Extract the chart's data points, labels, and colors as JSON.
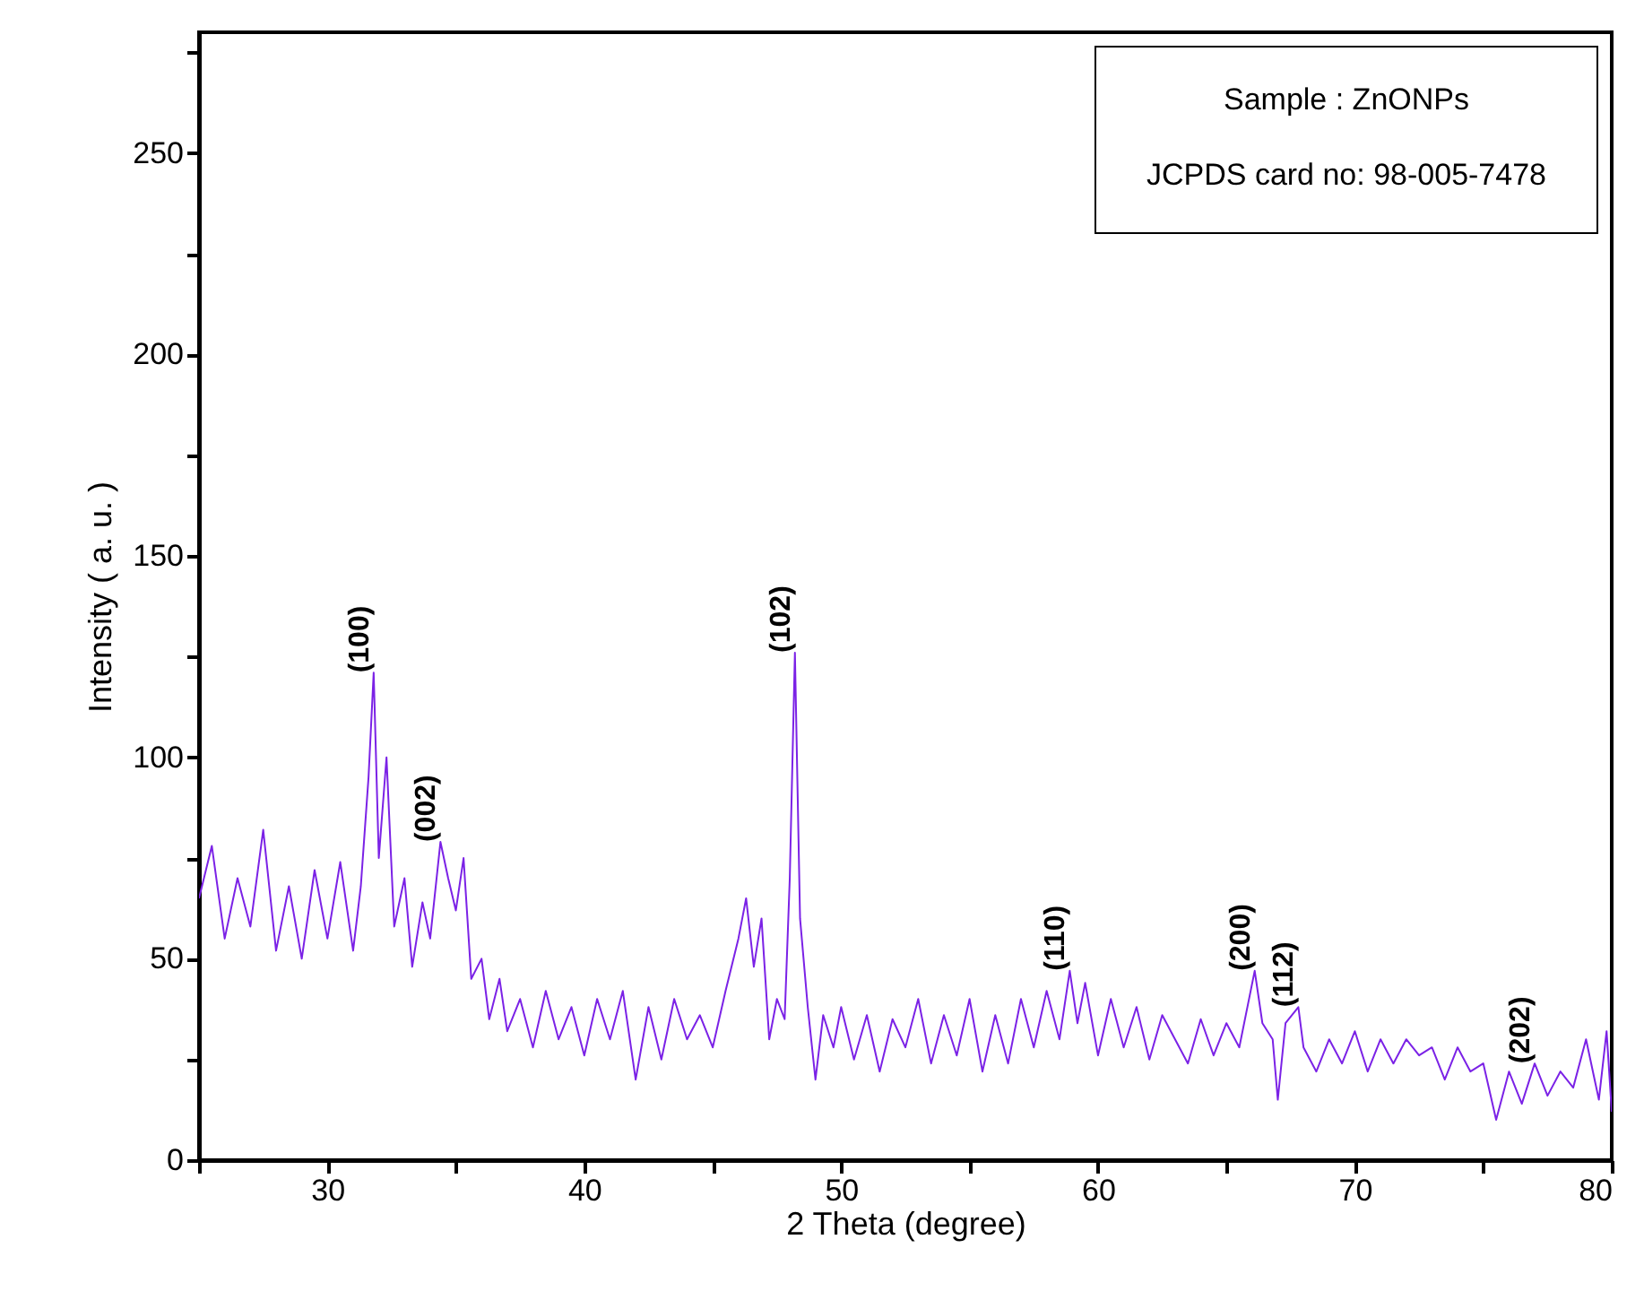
{
  "chart_data": {
    "type": "line",
    "xlabel": "2 Theta (degree)",
    "ylabel": "Intensity ( a. u. )",
    "xlim": [
      25,
      80
    ],
    "ylim": [
      0,
      280
    ],
    "xticks": [
      {
        "value": 25,
        "label": null
      },
      30,
      {
        "value": 35,
        "label": null
      },
      40,
      {
        "value": 45,
        "label": null
      },
      50,
      {
        "value": 55,
        "label": null
      },
      60,
      {
        "value": 65,
        "label": null
      },
      70,
      {
        "value": 75,
        "label": null
      },
      80
    ],
    "yticks": [
      0,
      {
        "value": 25,
        "label": null
      },
      50,
      {
        "value": 75,
        "label": null
      },
      100,
      {
        "value": 125,
        "label": null
      },
      150,
      {
        "value": 175,
        "label": null
      },
      200,
      {
        "value": 225,
        "label": null
      },
      250,
      {
        "value": 275,
        "label": null
      }
    ],
    "grid": false,
    "marker": "none",
    "line_style": "solid",
    "x": [
      25.0,
      25.5,
      26.0,
      26.5,
      27.0,
      27.5,
      28.0,
      28.5,
      29.0,
      29.5,
      30.0,
      30.5,
      31.0,
      31.3,
      31.6,
      31.8,
      32.0,
      32.3,
      32.6,
      33.0,
      33.3,
      33.7,
      34.0,
      34.4,
      34.7,
      35.0,
      35.3,
      35.6,
      36.0,
      36.3,
      36.7,
      37.0,
      37.5,
      38.0,
      38.5,
      39.0,
      39.5,
      40.0,
      40.5,
      41.0,
      41.5,
      42.0,
      42.5,
      43.0,
      43.5,
      44.0,
      44.5,
      45.0,
      45.5,
      46.0,
      46.3,
      46.6,
      46.9,
      47.2,
      47.5,
      47.8,
      48.0,
      48.2,
      48.4,
      48.7,
      49.0,
      49.3,
      49.7,
      50.0,
      50.5,
      51.0,
      51.5,
      52.0,
      52.5,
      53.0,
      53.5,
      54.0,
      54.5,
      55.0,
      55.5,
      56.0,
      56.5,
      57.0,
      57.5,
      58.0,
      58.5,
      58.9,
      59.2,
      59.5,
      60.0,
      60.5,
      61.0,
      61.5,
      62.0,
      62.5,
      63.0,
      63.5,
      64.0,
      64.5,
      65.0,
      65.5,
      66.1,
      66.4,
      66.8,
      67.0,
      67.3,
      67.8,
      68.0,
      68.5,
      69.0,
      69.5,
      70.0,
      70.5,
      71.0,
      71.5,
      72.0,
      72.5,
      73.0,
      73.5,
      74.0,
      74.5,
      75.0,
      75.5,
      76.0,
      76.5,
      77.0,
      77.5,
      78.0,
      78.5,
      79.0,
      79.5,
      79.8,
      80.0
    ],
    "series": [
      {
        "color": "#7b22e6",
        "values": [
          65,
          78,
          55,
          70,
          58,
          82,
          52,
          68,
          50,
          72,
          55,
          74,
          52,
          68,
          95,
          121,
          75,
          100,
          58,
          70,
          48,
          64,
          55,
          79,
          70,
          62,
          75,
          45,
          50,
          35,
          45,
          32,
          40,
          28,
          42,
          30,
          38,
          26,
          40,
          30,
          42,
          20,
          38,
          25,
          40,
          30,
          36,
          28,
          42,
          55,
          65,
          48,
          60,
          30,
          40,
          35,
          70,
          126,
          60,
          38,
          20,
          36,
          28,
          38,
          25,
          36,
          22,
          35,
          28,
          40,
          24,
          36,
          26,
          40,
          22,
          36,
          24,
          40,
          28,
          42,
          30,
          47,
          34,
          44,
          26,
          40,
          28,
          38,
          25,
          36,
          30,
          24,
          35,
          26,
          34,
          28,
          47,
          34,
          30,
          15,
          34,
          38,
          28,
          22,
          30,
          24,
          32,
          22,
          30,
          24,
          30,
          26,
          28,
          20,
          28,
          22,
          24,
          10,
          22,
          14,
          24,
          16,
          22,
          18,
          30,
          15,
          32,
          12
        ]
      }
    ],
    "annotations": [
      {
        "text": "(100)",
        "x": 31.8,
        "y": 121
      },
      {
        "text": "(002)",
        "x": 34.4,
        "y": 79
      },
      {
        "text": "(102)",
        "x": 48.2,
        "y": 126
      },
      {
        "text": "(110)",
        "x": 58.9,
        "y": 47
      },
      {
        "text": "(200)",
        "x": 66.1,
        "y": 47
      },
      {
        "text": "(112)",
        "x": 67.8,
        "y": 38
      },
      {
        "text": "(202)",
        "x": 77.0,
        "y": 24
      },
      "Sample : ZnONPs",
      "JCPDS card no: 98-005-7478"
    ]
  }
}
